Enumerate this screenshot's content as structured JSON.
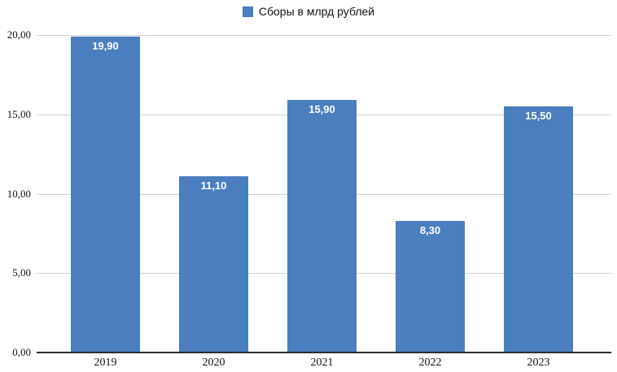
{
  "chart_data": {
    "type": "bar",
    "title": "",
    "legend": [
      "Сборы в млрд рублей"
    ],
    "legend_position": "top-center",
    "categories": [
      "2019",
      "2020",
      "2021",
      "2022",
      "2023"
    ],
    "values": [
      19.9,
      11.1,
      15.9,
      8.3,
      15.5
    ],
    "value_labels": [
      "19,90",
      "11,10",
      "15,90",
      "8,30",
      "15,50"
    ],
    "y_tick_labels": [
      "20,00",
      "15,00",
      "10,00",
      "5,00",
      "0,00"
    ],
    "ylim": [
      0,
      20
    ],
    "grid": true,
    "bar_color": "#4a7ebf",
    "gridline_color": "#d2d2d2",
    "axis_line_color": "#2e2e2e",
    "value_label_color": "#ffffff"
  }
}
